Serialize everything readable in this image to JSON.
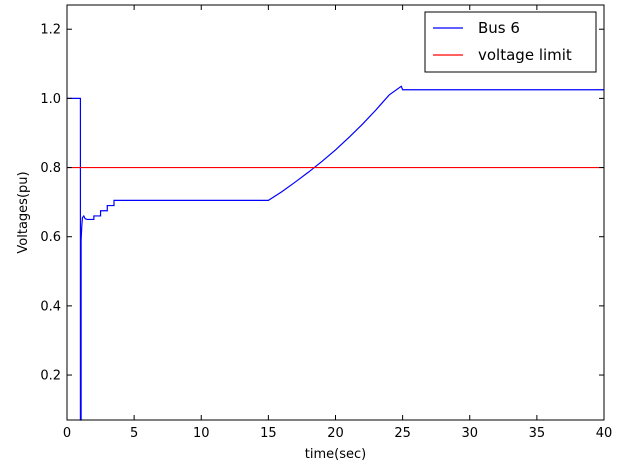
{
  "chart_data": {
    "type": "line",
    "xlabel": "time(sec)",
    "ylabel": "Voltages(pu)",
    "xlim": [
      0,
      40
    ],
    "ylim": [
      0.07,
      1.27
    ],
    "xticks": [
      0,
      5,
      10,
      15,
      20,
      25,
      30,
      35,
      40
    ],
    "yticks": [
      0.2,
      0.4,
      0.6,
      0.8,
      1.0,
      1.2
    ],
    "xtick_labels": [
      "0",
      "5",
      "10",
      "15",
      "20",
      "25",
      "30",
      "35",
      "40"
    ],
    "ytick_labels": [
      "0.2",
      "0.4",
      "0.6",
      "0.8",
      "1.0",
      "1.2"
    ],
    "grid": false,
    "legend_position": "top-right",
    "series": [
      {
        "name": "Bus 6",
        "color": "#0000ff",
        "x": [
          0,
          1.0,
          1.0,
          1.05,
          1.05,
          1.1,
          1.15,
          1.25,
          1.35,
          1.5,
          2.0,
          2.0,
          2.5,
          2.5,
          3.0,
          3.0,
          3.5,
          3.5,
          4.0,
          6.0,
          8.0,
          10.0,
          12.0,
          14.0,
          15.0,
          16.0,
          17.0,
          18.0,
          19.0,
          20.0,
          21.0,
          22.0,
          23.0,
          24.0,
          24.9,
          25.0,
          25.0,
          27.0,
          30.0,
          35.0,
          40.0
        ],
        "y": [
          1.0,
          1.0,
          0.07,
          0.07,
          0.59,
          0.63,
          0.655,
          0.66,
          0.652,
          0.65,
          0.65,
          0.66,
          0.66,
          0.675,
          0.675,
          0.69,
          0.69,
          0.705,
          0.705,
          0.705,
          0.705,
          0.705,
          0.705,
          0.705,
          0.705,
          0.73,
          0.758,
          0.787,
          0.818,
          0.851,
          0.887,
          0.925,
          0.966,
          1.01,
          1.035,
          1.025,
          1.025,
          1.025,
          1.025,
          1.025,
          1.025
        ]
      },
      {
        "name": "voltage limit",
        "color": "#ff0000",
        "x": [
          0,
          40
        ],
        "y": [
          0.8,
          0.8
        ]
      }
    ]
  }
}
